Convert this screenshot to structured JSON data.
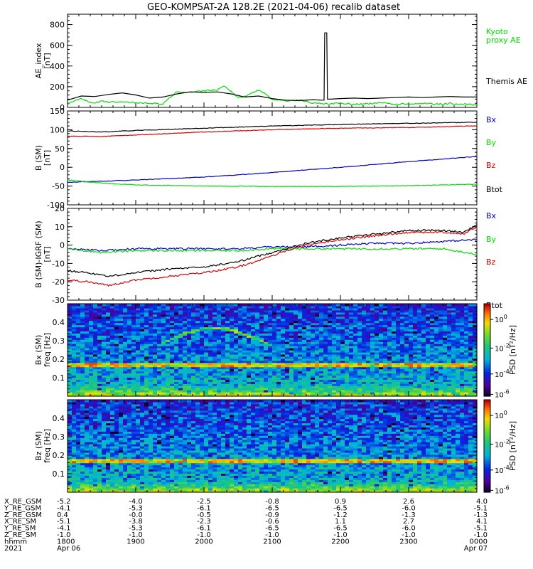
{
  "title": "GEO-KOMPSAT-2A 128.2E (2021-04-06) recalib dataset",
  "chart_data": [
    {
      "type": "line",
      "panel": "ae",
      "ylabel": [
        "AE_index",
        "[nT]"
      ],
      "ylim": [
        0,
        900
      ],
      "yticks": [
        0,
        200,
        400,
        600,
        800
      ],
      "xlim_hours": [
        18.0,
        24.0
      ],
      "series": [
        {
          "name": "Kyoto proxy AE",
          "legend_lines": [
            "Kyoto",
            "proxy AE"
          ],
          "color": "#00dd00",
          "x": [
            18.0,
            18.1,
            18.2,
            18.3,
            18.4,
            18.5,
            18.6,
            18.8,
            19.0,
            19.2,
            19.4,
            19.5,
            19.6,
            19.8,
            20.0,
            20.2,
            20.3,
            20.5,
            20.6,
            20.8,
            20.9,
            21.0,
            21.2,
            21.4,
            21.6,
            21.8,
            22.0,
            22.2,
            22.4,
            22.6,
            22.8,
            23.0,
            23.2,
            23.4,
            23.6,
            23.8,
            24.0
          ],
          "values": [
            30,
            60,
            90,
            55,
            45,
            60,
            50,
            55,
            45,
            40,
            35,
            90,
            150,
            145,
            160,
            170,
            210,
            95,
            105,
            170,
            130,
            80,
            60,
            70,
            40,
            35,
            40,
            30,
            35,
            45,
            30,
            35,
            40,
            30,
            40,
            30,
            25
          ]
        },
        {
          "name": "Themis AE",
          "legend_lines": [
            "Themis AE"
          ],
          "color": "#000000",
          "x": [
            18.0,
            18.1,
            18.2,
            18.4,
            18.6,
            18.8,
            19.0,
            19.2,
            19.4,
            19.6,
            19.8,
            20.0,
            20.2,
            20.4,
            20.6,
            20.8,
            21.0,
            21.2,
            21.4,
            21.6,
            21.7,
            21.76,
            21.77,
            21.8,
            21.81,
            21.85,
            22.0,
            22.2,
            22.4,
            22.6,
            22.8,
            23.0,
            23.2,
            23.4,
            23.6,
            23.8,
            24.0
          ],
          "values": [
            70,
            90,
            110,
            105,
            125,
            140,
            120,
            90,
            100,
            130,
            150,
            145,
            150,
            130,
            100,
            110,
            85,
            70,
            65,
            75,
            70,
            70,
            720,
            720,
            80,
            80,
            85,
            90,
            85,
            90,
            95,
            100,
            95,
            100,
            105,
            100,
            100
          ]
        }
      ]
    },
    {
      "type": "line",
      "panel": "b",
      "ylabel": [
        "B (SM)",
        "[nT]"
      ],
      "ylim": [
        -100,
        150
      ],
      "yticks": [
        -100,
        -50,
        0,
        50,
        100,
        150
      ],
      "series": [
        {
          "name": "Bx",
          "color": "#0000cc",
          "x": [
            18,
            19,
            20,
            21,
            22,
            23,
            24
          ],
          "values": [
            -40,
            -34,
            -26,
            -14,
            0,
            15,
            29
          ]
        },
        {
          "name": "By",
          "color": "#00dd00",
          "x": [
            18,
            18.5,
            19,
            20,
            21,
            22,
            23,
            24
          ],
          "values": [
            -34,
            -42,
            -47,
            -50,
            -51,
            -51,
            -49,
            -45
          ]
        },
        {
          "name": "Bz",
          "color": "#dd0000",
          "x": [
            18,
            18.5,
            19,
            20,
            21,
            22,
            23,
            24
          ],
          "values": [
            83,
            82,
            86,
            94,
            100,
            104,
            106,
            110
          ]
        },
        {
          "name": "Btot",
          "color": "#000000",
          "x": [
            18,
            18.5,
            19,
            20,
            21,
            22,
            23,
            24
          ],
          "values": [
            97,
            94,
            98,
            104,
            110,
            114,
            117,
            120
          ]
        }
      ]
    },
    {
      "type": "line",
      "panel": "dbresid",
      "ylabel": [
        "B (SM)-IGRF (SM)",
        "[nT]"
      ],
      "ylim": [
        -30,
        20
      ],
      "yticks": [
        -30,
        -20,
        -10,
        0,
        10,
        20
      ],
      "series": [
        {
          "name": "Bx",
          "color": "#0000cc",
          "x": [
            18,
            18.5,
            19,
            19.5,
            20,
            20.5,
            21,
            21.5,
            22,
            22.5,
            23,
            23.5,
            24
          ],
          "values": [
            -2,
            -3,
            -2,
            -2,
            -2,
            -2,
            -1,
            -1,
            0,
            1,
            1,
            2,
            3
          ]
        },
        {
          "name": "By",
          "color": "#00dd00",
          "x": [
            18,
            18.5,
            19,
            19.5,
            20,
            20.5,
            21,
            21.5,
            22,
            22.5,
            23,
            23.5,
            24
          ],
          "values": [
            -2,
            -4,
            -3,
            -3,
            -3,
            -3,
            -2,
            -2,
            -2,
            -2,
            -2,
            -2,
            -5
          ]
        },
        {
          "name": "Bz",
          "color": "#dd0000",
          "x": [
            18,
            18.3,
            18.6,
            19,
            19.5,
            20,
            20.5,
            21,
            21.2,
            21.5,
            22,
            22.5,
            23,
            23.5,
            23.8,
            24
          ],
          "values": [
            -19,
            -20,
            -22,
            -19,
            -17,
            -15,
            -12,
            -6,
            -3,
            0,
            3,
            5,
            7,
            7,
            6,
            10
          ]
        },
        {
          "name": "Btot",
          "color": "#000000",
          "x": [
            18,
            18.3,
            18.6,
            19,
            19.5,
            20,
            20.5,
            21,
            21.2,
            21.5,
            22,
            22.5,
            23,
            23.5,
            23.8,
            24
          ],
          "values": [
            -14,
            -15,
            -17,
            -15,
            -13,
            -12,
            -9,
            -4,
            -2,
            1,
            4,
            6,
            8,
            8,
            7,
            11
          ]
        }
      ]
    },
    {
      "type": "heatmap",
      "panel": "spec_bx",
      "ylabel": [
        "Bx (SM)",
        "freq [Hz]"
      ],
      "ylim": [
        0,
        0.5
      ],
      "yticks": [
        0.1,
        0.2,
        0.3,
        0.4
      ],
      "zlabel": "PSD [nT²/Hz]",
      "ztick_exponents": [
        "0",
        "-2",
        "-4",
        "-6"
      ]
    },
    {
      "type": "heatmap",
      "panel": "spec_bz",
      "ylabel": [
        "Bz (SM)",
        "freq [Hz]"
      ],
      "ylim": [
        0,
        0.5
      ],
      "yticks": [
        0.1,
        0.2,
        0.3,
        0.4
      ],
      "zlabel": "PSD [nT²/Hz]",
      "ztick_exponents": [
        "0",
        "-2",
        "-4",
        "-6"
      ]
    }
  ],
  "ephemeris": {
    "rows": [
      {
        "label": "X_RE_GSM",
        "values": [
          "-5.2",
          "-4.0",
          "-2.5",
          "-0.8",
          "0.9",
          "2.6",
          "4.0"
        ]
      },
      {
        "label": "Y_RE_GSM",
        "values": [
          "-4.1",
          "-5.3",
          "-6.1",
          "-6.5",
          "-6.5",
          "-6.0",
          "-5.1"
        ]
      },
      {
        "label": "Z_RE_GSM",
        "values": [
          "0.4",
          "-0.0",
          "-0.5",
          "-0.9",
          "-1.2",
          "-1.3",
          "-1.3"
        ]
      },
      {
        "label": "X_RE_SM",
        "values": [
          "-5.1",
          "-3.8",
          "-2.3",
          "-0.6",
          "1.1",
          "2.7",
          "4.1"
        ]
      },
      {
        "label": "Y_RE_SM",
        "values": [
          "-4.1",
          "-5.3",
          "-6.1",
          "-6.5",
          "-6.5",
          "-6.0",
          "-5.1"
        ]
      },
      {
        "label": "Z_RE_SM",
        "values": [
          "-1.0",
          "-1.0",
          "-1.0",
          "-1.0",
          "-1.0",
          "-1.0",
          "-1.0"
        ]
      },
      {
        "label": "hhmm",
        "values": [
          "1800",
          "1900",
          "2000",
          "2100",
          "2200",
          "2300",
          "0000"
        ]
      },
      {
        "label": "2021",
        "values": [
          "Apr 06",
          "",
          "",
          "",
          "",
          "",
          "Apr 07"
        ]
      }
    ]
  }
}
